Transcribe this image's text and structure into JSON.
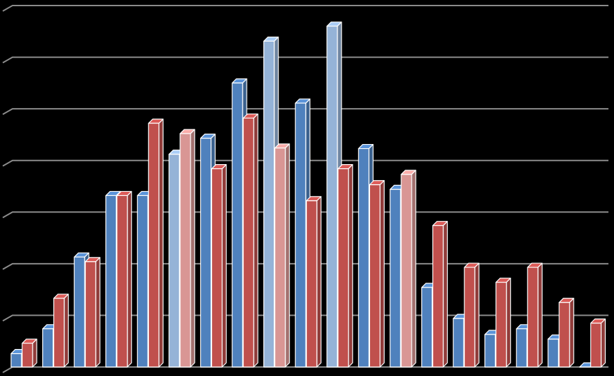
{
  "chart_data": {
    "type": "bar3d",
    "categories": [
      null,
      null,
      null,
      null,
      null,
      null,
      null,
      null,
      null,
      null,
      null,
      null,
      null,
      null,
      null,
      null,
      null,
      null,
      null
    ],
    "series": [
      {
        "color": "#4f81bd",
        "colors": [
          "#4f81bd",
          "#4f81bd",
          "#4f81bd",
          "#4f81bd",
          "#4f81bd",
          "#95b3d7",
          "#4f81bd",
          "#4f81bd",
          "#95b3d7",
          "#4f81bd",
          "#95b3d7",
          "#4f81bd",
          "#4f81bd",
          "#4f81bd",
          "#4f81bd",
          "#4f81bd",
          "#4f81bd",
          "#4f81bd",
          "#4f81bd"
        ],
        "values": [
          0.26,
          0.74,
          2.13,
          3.32,
          3.32,
          4.12,
          4.43,
          5.5,
          6.31,
          5.11,
          6.6,
          4.23,
          3.44,
          1.54,
          0.94,
          0.63,
          0.74,
          0.54,
          0
        ]
      },
      {
        "color": "#c0504d",
        "colors": [
          "#c0504d",
          "#c0504d",
          "#c0504d",
          "#c0504d",
          "#c0504d",
          "#d99694",
          "#c0504d",
          "#c0504d",
          "#d99694",
          "#c0504d",
          "#c0504d",
          "#c0504d",
          "#d99694",
          "#c0504d",
          "#c0504d",
          "#c0504d",
          "#c0504d",
          "#c0504d",
          "#c0504d"
        ],
        "values": [
          0.46,
          1.33,
          2.04,
          3.32,
          4.72,
          4.52,
          3.84,
          4.82,
          4.24,
          3.22,
          3.84,
          3.53,
          3.73,
          2.74,
          1.93,
          1.64,
          1.93,
          1.25,
          0.85
        ]
      }
    ],
    "ylim": [
      0,
      7
    ],
    "yticks": [
      0,
      1,
      2,
      3,
      4,
      5,
      6,
      7
    ],
    "grid": true
  }
}
